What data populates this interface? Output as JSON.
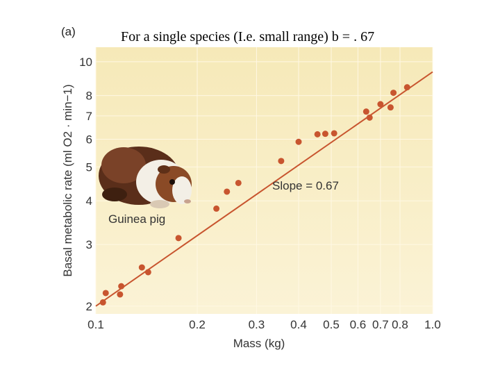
{
  "panel_label": "(a)",
  "heading": "For a single species (I.e. small range) b = . 67",
  "colors": {
    "plot_bg_top": "#f6e9b8",
    "plot_bg_bottom": "#fbf3d6",
    "grid": "#fff8e4",
    "point": "#c8552f",
    "line": "#c8552f",
    "text": "#333333"
  },
  "chart_data": {
    "type": "scatter",
    "xscale": "log",
    "yscale": "log",
    "xlim": [
      0.1,
      1.0
    ],
    "ylim": [
      1.9,
      11.0
    ],
    "grid": true,
    "xlabel": "Mass (kg)",
    "ylabel": "Basal metabolic rate (ml O2 · min−1)",
    "xticks": [
      {
        "value": 0.1,
        "label": "0.1"
      },
      {
        "value": 0.2,
        "label": "0.2"
      },
      {
        "value": 0.3,
        "label": "0.3"
      },
      {
        "value": 0.4,
        "label": "0.4"
      },
      {
        "value": 0.5,
        "label": "0.5"
      },
      {
        "value": 0.6,
        "label": "0.6"
      },
      {
        "value": 0.7,
        "label": "0.7"
      },
      {
        "value": 0.8,
        "label": "0.8"
      },
      {
        "value": 1.0,
        "label": "1.0"
      }
    ],
    "yticks": [
      {
        "value": 2,
        "label": "2"
      },
      {
        "value": 3,
        "label": "3"
      },
      {
        "value": 4,
        "label": "4"
      },
      {
        "value": 5,
        "label": "5"
      },
      {
        "value": 6,
        "label": "6"
      },
      {
        "value": 7,
        "label": "7"
      },
      {
        "value": 8,
        "label": "8"
      },
      {
        "value": 10,
        "label": "10"
      }
    ],
    "points": [
      {
        "x": 0.105,
        "y": 2.05
      },
      {
        "x": 0.107,
        "y": 2.18
      },
      {
        "x": 0.118,
        "y": 2.16
      },
      {
        "x": 0.119,
        "y": 2.28
      },
      {
        "x": 0.137,
        "y": 2.58
      },
      {
        "x": 0.143,
        "y": 2.5
      },
      {
        "x": 0.176,
        "y": 3.13
      },
      {
        "x": 0.228,
        "y": 3.8
      },
      {
        "x": 0.245,
        "y": 4.25
      },
      {
        "x": 0.265,
        "y": 4.5
      },
      {
        "x": 0.355,
        "y": 5.2
      },
      {
        "x": 0.4,
        "y": 5.9
      },
      {
        "x": 0.455,
        "y": 6.2
      },
      {
        "x": 0.48,
        "y": 6.22
      },
      {
        "x": 0.51,
        "y": 6.24
      },
      {
        "x": 0.635,
        "y": 7.2
      },
      {
        "x": 0.65,
        "y": 6.92
      },
      {
        "x": 0.7,
        "y": 7.56
      },
      {
        "x": 0.75,
        "y": 7.4
      },
      {
        "x": 0.765,
        "y": 8.15
      },
      {
        "x": 0.84,
        "y": 8.45
      }
    ],
    "regression": {
      "slope": 0.67,
      "x_start": 0.1,
      "y_start": 2.0,
      "x_end": 1.0,
      "y_end": 9.35
    },
    "annotations": [
      {
        "text": "Slope = 0.67"
      },
      {
        "text": "Guinea pig"
      }
    ]
  }
}
